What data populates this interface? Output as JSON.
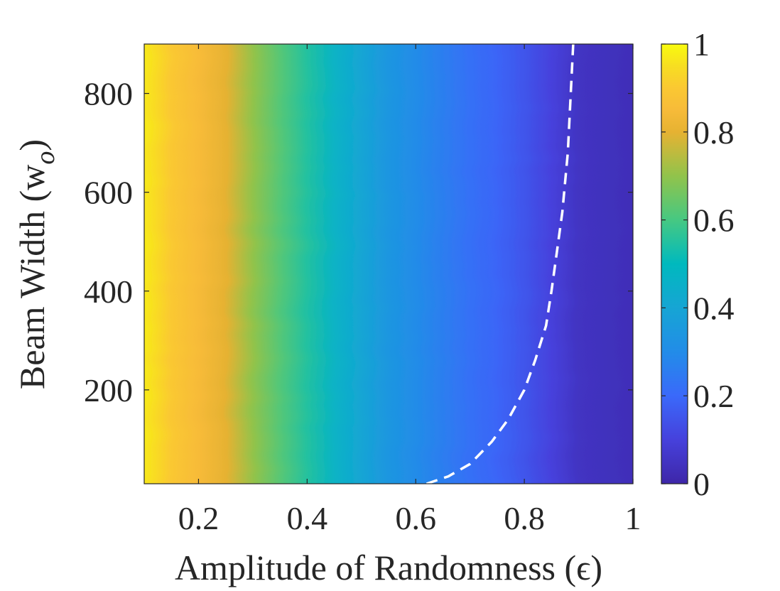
{
  "chart_data": {
    "type": "heatmap",
    "xlabel": "Amplitude of Randomness (ϵ)",
    "ylabel": "Beam Width (w",
    "ylabel_subscript": "o",
    "ylabel_close": ")",
    "xlim": [
      0.1,
      1.0
    ],
    "ylim": [
      10,
      900
    ],
    "x_ticks": [
      0.2,
      0.4,
      0.6,
      0.8,
      1.0
    ],
    "x_tick_labels": [
      "0.2",
      "0.4",
      "0.6",
      "0.8",
      "1"
    ],
    "y_ticks": [
      200,
      400,
      600,
      800
    ],
    "y_tick_labels": [
      "200",
      "400",
      "600",
      "800"
    ],
    "colorbar": {
      "colormap": "parula",
      "range": [
        0,
        1
      ],
      "ticks": [
        0,
        0.2,
        0.4,
        0.6,
        0.8,
        1
      ],
      "tick_labels": [
        "0",
        "0.2",
        "0.4",
        "0.6",
        "0.8",
        "1"
      ]
    },
    "column_profile": {
      "x": [
        0.1,
        0.15,
        0.2,
        0.25,
        0.3,
        0.35,
        0.4,
        0.45,
        0.5,
        0.55,
        0.6,
        0.65,
        0.7,
        0.75,
        0.8,
        0.85,
        0.9,
        0.95,
        1.0
      ],
      "value": [
        0.97,
        0.9,
        0.85,
        0.8,
        0.7,
        0.62,
        0.55,
        0.47,
        0.4,
        0.34,
        0.3,
        0.26,
        0.22,
        0.19,
        0.15,
        0.1,
        0.05,
        0.04,
        0.03
      ]
    },
    "boundary_curve": {
      "style": "dashed",
      "color": "#ffffff",
      "x": [
        0.62,
        0.66,
        0.7,
        0.74,
        0.77,
        0.8,
        0.82,
        0.84,
        0.85,
        0.86,
        0.87,
        0.88,
        0.885,
        0.89
      ],
      "y": [
        10,
        25,
        50,
        95,
        140,
        200,
        260,
        330,
        400,
        480,
        560,
        680,
        790,
        900
      ]
    },
    "grid": false,
    "legend": "none"
  }
}
